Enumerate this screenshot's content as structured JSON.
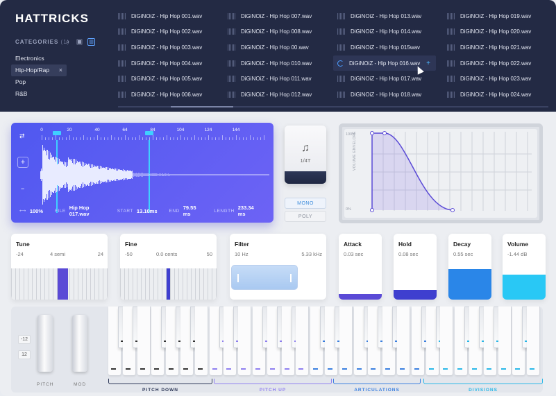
{
  "brand": {
    "logo": "HATTRICKS"
  },
  "categories": {
    "title": "CATEGORIES",
    "count": "(1)",
    "items": [
      "Electronics",
      "Hip-Hop/Rap",
      "Pop",
      "R&B"
    ],
    "selected": "Hip-Hop/Rap"
  },
  "files": {
    "col1": [
      "DiGiNOiZ - Hip Hop 001.wav",
      "DiGiNOiZ - Hip Hop 002.wav",
      "DiGiNOiZ - Hip Hop 003.wav",
      "DiGiNOiZ - Hip Hop 004.wav",
      "DiGiNOiZ - Hip Hop 005.wav",
      "DiGiNOiZ - Hip Hop 006.wav"
    ],
    "col2": [
      "DiGiNOiZ - Hip Hop 007.wav",
      "DiGiNOiZ - Hip Hop 008.wav",
      "DiGiNOiZ - Hip Hop 00.wav",
      "DiGiNOiZ - Hip Hop 010.wav",
      "DiGiNOiZ - Hip Hop 011.wav",
      "DiGiNOiZ - Hip Hop 012.wav"
    ],
    "col3": [
      "DiGiNOiZ - Hip Hop 013.wav",
      "DiGiNOiZ - Hip Hop 014.wav",
      "DiGiNOiZ - Hip Hop 015wav",
      "DiGiNOiZ - Hip Hop 016.wav",
      "DiGiNOiZ - Hip Hop 017.wav",
      "DiGiNOiZ - Hip Hop 018.wav"
    ],
    "col4": [
      "DiGiNOiZ - Hip Hop 019.wav",
      "DiGiNOiZ - Hip Hop 020.wav",
      "DiGiNOiZ - Hip Hop 021.wav",
      "DiGiNOiZ - Hip Hop 022.wav",
      "DiGiNOiZ - Hip Hop 023.wav",
      "DiGiNOiZ - Hip Hop 024.wav"
    ]
  },
  "waveform": {
    "ruler": [
      "0",
      "20",
      "40",
      "64",
      "84",
      "104",
      "124",
      "144"
    ],
    "zoom": "100%",
    "file_label": "FILE",
    "file": "Hip Hop 017.wav",
    "start_label": "START",
    "start": "13.10ms",
    "end_label": "END",
    "end": "79.55 ms",
    "length_label": "LENGTH",
    "length": "233.34 ms"
  },
  "note": {
    "symbol": "♫",
    "value": "1/4T"
  },
  "voice": {
    "mono": "MONO",
    "poly": "POLY"
  },
  "envelope": {
    "top": "100%",
    "bottom": "0%",
    "axis": "VOLUME ENVELOPE"
  },
  "tune": {
    "title": "Tune",
    "min": "-24",
    "value": "4 semi",
    "max": "24"
  },
  "fine": {
    "title": "Fine",
    "min": "-50",
    "value": "0.0 cents",
    "max": "50"
  },
  "filter": {
    "title": "Filter",
    "min": "10 Hz",
    "value": "5.33 kHz"
  },
  "attack": {
    "title": "Attack",
    "value": "0.03 sec",
    "color": "#5a4ad6"
  },
  "hold": {
    "title": "Hold",
    "value": "0.08 sec",
    "color": "#3f3fcf"
  },
  "decay": {
    "title": "Decay",
    "value": "0.55 sec",
    "color": "#2a86e8"
  },
  "volume": {
    "title": "Volume",
    "value": "-1.44 dB",
    "color": "#29c8f5"
  },
  "keyboard": {
    "oct_up": "-12",
    "oct_down": "12",
    "pitch": "PITCH",
    "mod": "MOD",
    "zones": [
      "PITCH DOWN",
      "PITCH UP",
      "ARTICULATIONS",
      "DIVISIONS"
    ],
    "zone_colors": [
      "#2b3656",
      "#8f7ff0",
      "#3a7fe0",
      "#29b8e8"
    ]
  }
}
